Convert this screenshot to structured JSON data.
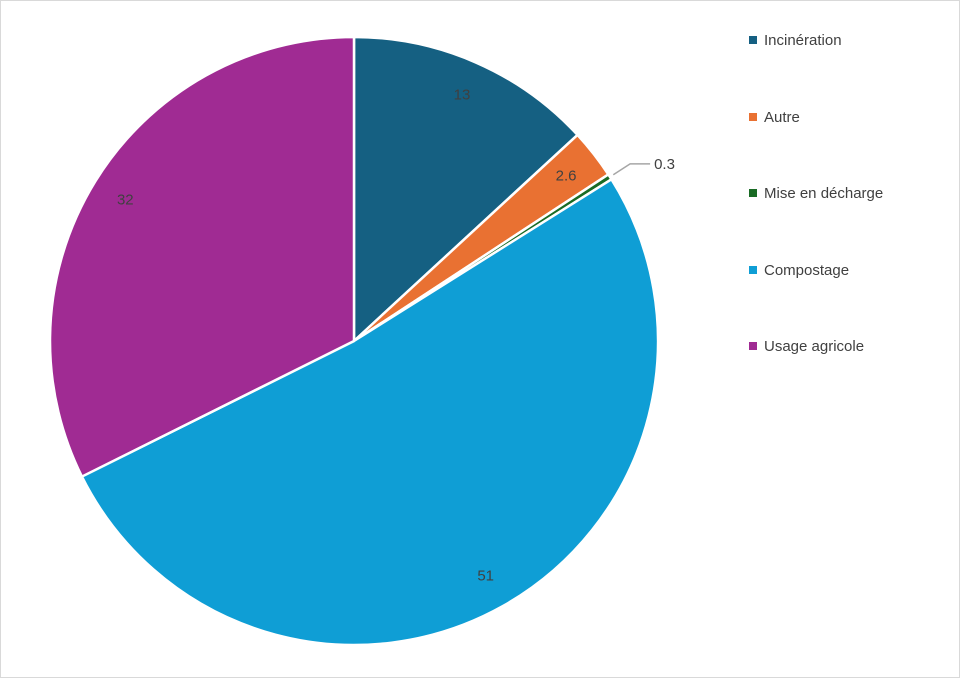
{
  "chart_data": {
    "type": "pie",
    "title": "",
    "start_angle_deg": 0,
    "direction": "clockwise",
    "legend_position": "right",
    "slices": [
      {
        "label": "Incinération",
        "value": 13,
        "display": "13",
        "color": "#156082"
      },
      {
        "label": "Autre",
        "value": 2.6,
        "display": "2.6",
        "color": "#E97132"
      },
      {
        "label": "Mise en décharge",
        "value": 0.3,
        "display": "0.3",
        "color": "#196B24"
      },
      {
        "label": "Compostage",
        "value": 51,
        "display": "51",
        "color": "#0F9ED5"
      },
      {
        "label": "Usage agricole",
        "value": 32,
        "display": "32",
        "color": "#A02B93"
      }
    ]
  }
}
